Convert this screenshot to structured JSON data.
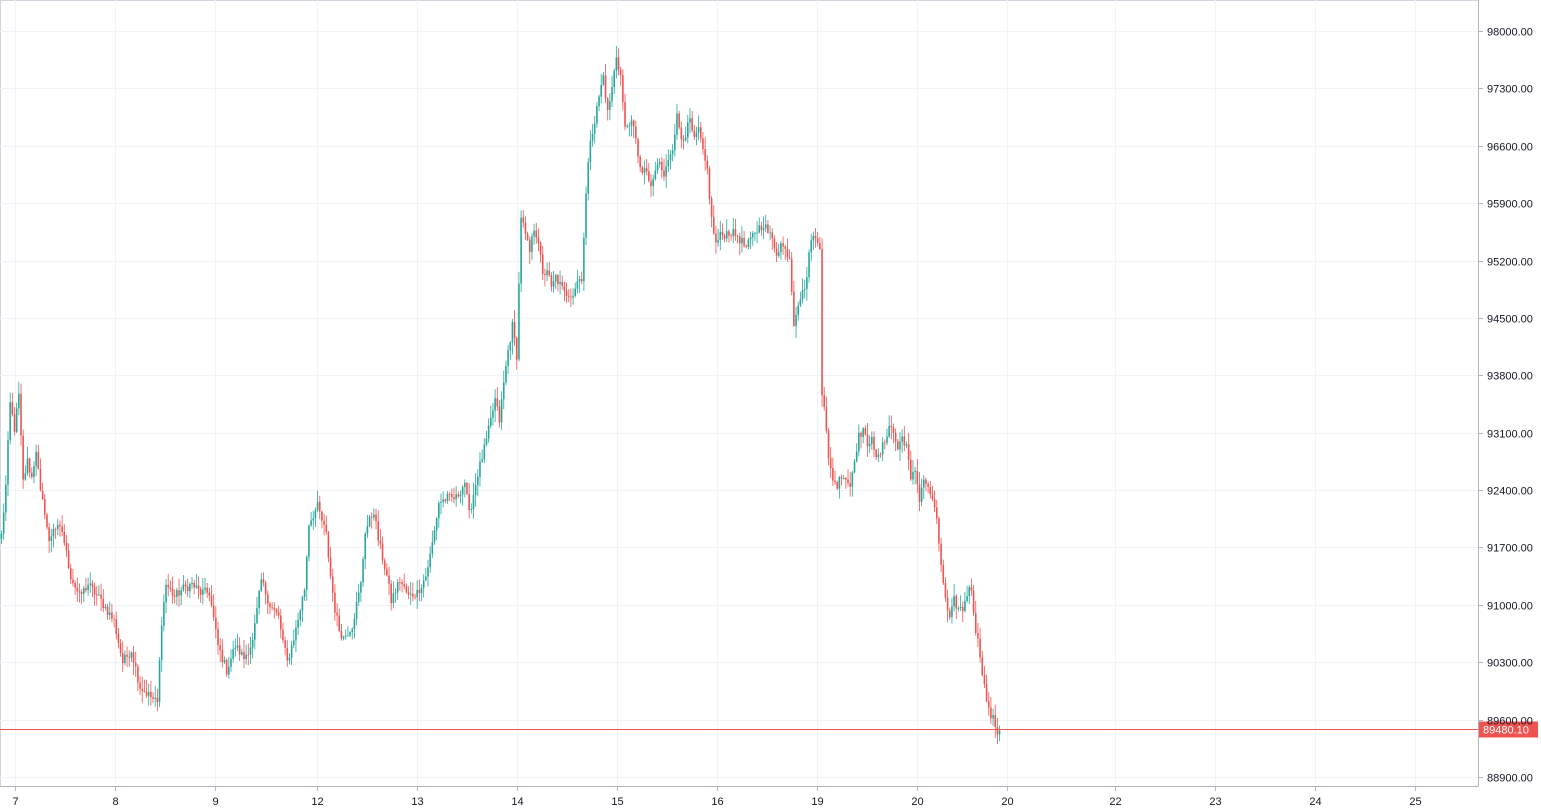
{
  "chart_data": {
    "type": "candlestick",
    "title": "",
    "xlabel": "",
    "ylabel": "",
    "grid": true,
    "colors": {
      "up": "#26a69a",
      "down": "#ef5350",
      "grid": "#f0f3fa",
      "axis": "#b2b5be",
      "price_line": "#ef5350"
    },
    "ylim": [
      88700,
      98350
    ],
    "y_ticks": [
      {
        "value": 98000,
        "label": "98000.00"
      },
      {
        "value": 97300,
        "label": "97300.00"
      },
      {
        "value": 96600,
        "label": "96600.00"
      },
      {
        "value": 95900,
        "label": "95900.00"
      },
      {
        "value": 95200,
        "label": "95200.00"
      },
      {
        "value": 94500,
        "label": "94500.00"
      },
      {
        "value": 93800,
        "label": "93800.00"
      },
      {
        "value": 93100,
        "label": "93100.00"
      },
      {
        "value": 92400,
        "label": "92400.00"
      },
      {
        "value": 91700,
        "label": "91700.00"
      },
      {
        "value": 91000,
        "label": "91000.00"
      },
      {
        "value": 90300,
        "label": "90300.00"
      },
      {
        "value": 89600,
        "label": "89600.00"
      },
      {
        "value": 88900,
        "label": "88900.00"
      }
    ],
    "x_ticks": [
      "7",
      "8",
      "9",
      "12",
      "13",
      "14",
      "15",
      "16",
      "19",
      "20",
      "20",
      "22",
      "23",
      "24",
      "25"
    ],
    "last_price": {
      "value": 89480.1,
      "label": "89480.10"
    },
    "anchors": [
      [
        0,
        91850
      ],
      [
        2,
        92450
      ],
      [
        4,
        93450
      ],
      [
        6,
        93150
      ],
      [
        8,
        93550
      ],
      [
        10,
        92500
      ],
      [
        12,
        92750
      ],
      [
        14,
        92550
      ],
      [
        16,
        92900
      ],
      [
        18,
        92350
      ],
      [
        20,
        92150
      ],
      [
        22,
        91750
      ],
      [
        24,
        91950
      ],
      [
        28,
        91900
      ],
      [
        32,
        91350
      ],
      [
        36,
        91100
      ],
      [
        40,
        91250
      ],
      [
        46,
        91050
      ],
      [
        52,
        90800
      ],
      [
        56,
        90300
      ],
      [
        60,
        90450
      ],
      [
        64,
        90000
      ],
      [
        68,
        89900
      ],
      [
        72,
        89800
      ],
      [
        74,
        90800
      ],
      [
        76,
        91250
      ],
      [
        80,
        91100
      ],
      [
        84,
        91200
      ],
      [
        88,
        91250
      ],
      [
        92,
        91150
      ],
      [
        96,
        91150
      ],
      [
        100,
        90500
      ],
      [
        104,
        90200
      ],
      [
        108,
        90500
      ],
      [
        112,
        90350
      ],
      [
        116,
        90550
      ],
      [
        120,
        91300
      ],
      [
        124,
        91000
      ],
      [
        128,
        90850
      ],
      [
        130,
        90550
      ],
      [
        132,
        90300
      ],
      [
        136,
        90700
      ],
      [
        140,
        91200
      ],
      [
        142,
        92000
      ],
      [
        146,
        92200
      ],
      [
        150,
        91850
      ],
      [
        152,
        91350
      ],
      [
        154,
        90950
      ],
      [
        156,
        90700
      ],
      [
        158,
        90600
      ],
      [
        162,
        90750
      ],
      [
        166,
        91250
      ],
      [
        168,
        91900
      ],
      [
        172,
        92150
      ],
      [
        174,
        91800
      ],
      [
        178,
        91350
      ],
      [
        180,
        91050
      ],
      [
        184,
        91300
      ],
      [
        188,
        91100
      ],
      [
        192,
        91150
      ],
      [
        196,
        91350
      ],
      [
        198,
        91600
      ],
      [
        200,
        91900
      ],
      [
        202,
        92250
      ],
      [
        206,
        92300
      ],
      [
        210,
        92300
      ],
      [
        214,
        92500
      ],
      [
        216,
        92100
      ],
      [
        220,
        92600
      ],
      [
        224,
        93000
      ],
      [
        228,
        93500
      ],
      [
        230,
        93250
      ],
      [
        232,
        93700
      ],
      [
        234,
        94100
      ],
      [
        236,
        94400
      ],
      [
        238,
        94050
      ],
      [
        240,
        95750
      ],
      [
        242,
        95500
      ],
      [
        244,
        95300
      ],
      [
        246,
        95600
      ],
      [
        248,
        95450
      ],
      [
        250,
        95000
      ],
      [
        252,
        95100
      ],
      [
        254,
        94850
      ],
      [
        256,
        95000
      ],
      [
        260,
        94800
      ],
      [
        264,
        94800
      ],
      [
        266,
        94950
      ],
      [
        268,
        95000
      ],
      [
        270,
        96000
      ],
      [
        272,
        96700
      ],
      [
        274,
        96900
      ],
      [
        276,
        97200
      ],
      [
        278,
        97450
      ],
      [
        280,
        97000
      ],
      [
        282,
        97300
      ],
      [
        284,
        97700
      ],
      [
        286,
        97450
      ],
      [
        288,
        96800
      ],
      [
        290,
        96900
      ],
      [
        292,
        96800
      ],
      [
        294,
        96500
      ],
      [
        296,
        96250
      ],
      [
        298,
        96300
      ],
      [
        300,
        96050
      ],
      [
        302,
        96300
      ],
      [
        304,
        96400
      ],
      [
        306,
        96200
      ],
      [
        308,
        96450
      ],
      [
        310,
        96600
      ],
      [
        312,
        96950
      ],
      [
        314,
        96700
      ],
      [
        316,
        96750
      ],
      [
        318,
        96900
      ],
      [
        320,
        96650
      ],
      [
        322,
        96800
      ],
      [
        324,
        96500
      ],
      [
        326,
        96300
      ],
      [
        328,
        95700
      ],
      [
        330,
        95400
      ],
      [
        332,
        95500
      ],
      [
        336,
        95550
      ],
      [
        340,
        95500
      ],
      [
        344,
        95350
      ],
      [
        348,
        95550
      ],
      [
        352,
        95650
      ],
      [
        356,
        95450
      ],
      [
        358,
        95300
      ],
      [
        360,
        95400
      ],
      [
        364,
        95250
      ],
      [
        366,
        94450
      ],
      [
        368,
        94700
      ],
      [
        370,
        94800
      ],
      [
        372,
        95000
      ],
      [
        374,
        95500
      ],
      [
        376,
        95450
      ],
      [
        378,
        95400
      ],
      [
        379,
        93600
      ],
      [
        380,
        93450
      ],
      [
        382,
        92750
      ],
      [
        384,
        92550
      ],
      [
        386,
        92450
      ],
      [
        388,
        92600
      ],
      [
        390,
        92550
      ],
      [
        392,
        92450
      ],
      [
        394,
        92800
      ],
      [
        396,
        93050
      ],
      [
        398,
        93150
      ],
      [
        400,
        92900
      ],
      [
        402,
        93100
      ],
      [
        404,
        92750
      ],
      [
        406,
        92850
      ],
      [
        408,
        93000
      ],
      [
        410,
        93200
      ],
      [
        412,
        93100
      ],
      [
        414,
        92900
      ],
      [
        416,
        93050
      ],
      [
        418,
        92950
      ],
      [
        420,
        92500
      ],
      [
        422,
        92650
      ],
      [
        424,
        92300
      ],
      [
        426,
        92550
      ],
      [
        428,
        92400
      ],
      [
        430,
        92300
      ],
      [
        432,
        92000
      ],
      [
        434,
        91500
      ],
      [
        436,
        91050
      ],
      [
        438,
        90800
      ],
      [
        440,
        91050
      ],
      [
        442,
        90950
      ],
      [
        444,
        90950
      ],
      [
        446,
        91150
      ],
      [
        448,
        91200
      ],
      [
        450,
        90700
      ],
      [
        452,
        90400
      ],
      [
        454,
        90000
      ],
      [
        456,
        89700
      ],
      [
        458,
        89600
      ],
      [
        460,
        89450
      ],
      [
        462,
        89500
      ]
    ],
    "candle_count": 462
  }
}
